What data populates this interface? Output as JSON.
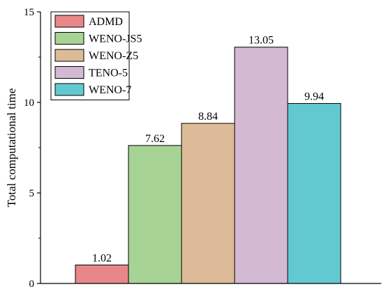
{
  "chart_data": {
    "type": "bar",
    "title": "",
    "xlabel": "",
    "ylabel": "Total computational time",
    "ylim": [
      0,
      15
    ],
    "yticks": [
      "0",
      "5",
      "10",
      "15"
    ],
    "grid": false,
    "legend_position": "top-left",
    "categories": [
      "ADMD",
      "WENO-JS5",
      "WENO-Z5",
      "TENO-5",
      "WENO-7"
    ],
    "values": [
      1.02,
      7.62,
      8.84,
      13.05,
      9.94
    ],
    "value_labels": [
      "1.02",
      "7.62",
      "8.84",
      "13.05",
      "9.94"
    ],
    "colors": [
      "#e8878a",
      "#a7d395",
      "#ddbb98",
      "#d4b9d2",
      "#63c9d0"
    ]
  }
}
